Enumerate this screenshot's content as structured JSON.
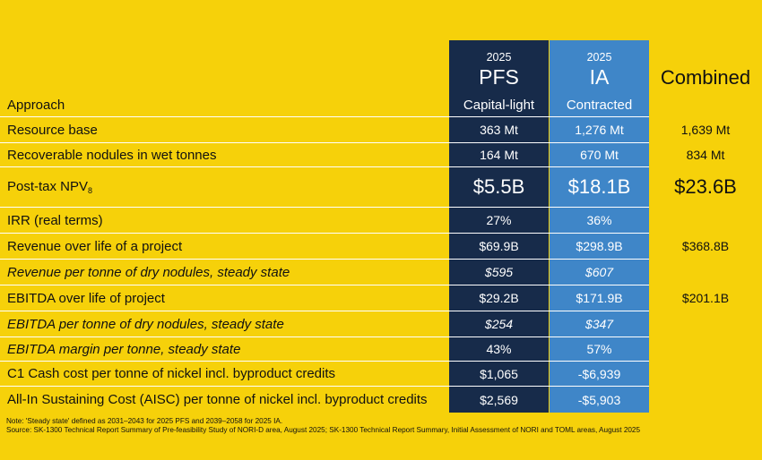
{
  "columns": {
    "pfs": {
      "year": "2025",
      "name": "PFS",
      "approach": "Capital-light"
    },
    "ia": {
      "year": "2025",
      "name": "IA",
      "approach": "Contracted"
    },
    "combined": {
      "name": "Combined"
    }
  },
  "approach_label": "Approach",
  "rows": [
    {
      "label": "Resource base",
      "pfs": "363 Mt",
      "ia": "1,276 Mt",
      "combined": "1,639 Mt"
    },
    {
      "label": "Recoverable nodules in wet tonnes",
      "pfs": "164 Mt",
      "ia": "670 Mt",
      "combined": "834 Mt"
    },
    {
      "label": "Post-tax NPV",
      "label_sub": "8",
      "pfs": "$5.5B",
      "ia": "$18.1B",
      "combined": "$23.6B"
    },
    {
      "label": "IRR (real terms)",
      "pfs": "27%",
      "ia": "36%",
      "combined": ""
    },
    {
      "label": "Revenue over life of a project",
      "pfs": "$69.9B",
      "ia": "$298.9B",
      "combined": "$368.8B"
    },
    {
      "label": "Revenue per tonne of dry nodules, steady state",
      "pfs": "$595",
      "ia": "$607",
      "combined": ""
    },
    {
      "label": "EBITDA over life of project",
      "pfs": "$29.2B",
      "ia": "$171.9B",
      "combined": "$201.1B"
    },
    {
      "label": "EBITDA per tonne of dry nodules, steady state",
      "pfs": "$254",
      "ia": "$347",
      "combined": ""
    },
    {
      "label": "EBITDA margin per tonne, steady state",
      "pfs": "43%",
      "ia": "57%",
      "combined": ""
    },
    {
      "label": "C1 Cash cost per tonne of nickel incl. byproduct credits",
      "pfs": "$1,065",
      "ia": "-$6,939",
      "combined": ""
    },
    {
      "label": "All-In Sustaining Cost (AISC) per tonne of nickel incl. byproduct credits",
      "pfs": "$2,569",
      "ia": "-$5,903",
      "combined": ""
    }
  ],
  "notes": {
    "line1": "Note: 'Steady state' defined as 2031–2043 for 2025 PFS and 2039–2058 for 2025 IA.",
    "line2": "Source: SK-1300 Technical Report Summary of Pre-feasibility Study of NORI-D area, August 2025; SK-1300 Technical Report Summary, Initial Assessment of NORI and TOML areas, August 2025"
  }
}
